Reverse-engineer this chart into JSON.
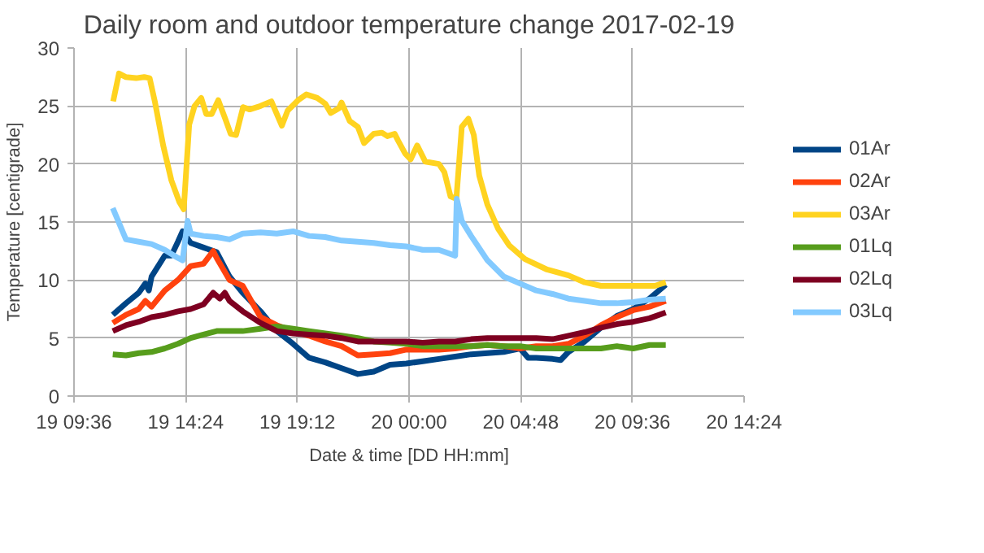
{
  "chart_data": {
    "type": "line",
    "title": "Daily room and outdoor temperature change 2017-02-19",
    "xlabel": "Date & time [DD HH:mm]",
    "ylabel": "Temperature [centigrade]",
    "xlim": [
      "2017-02-19T09:36",
      "2017-02-20T14:24"
    ],
    "xticks": [
      {
        "value": "2017-02-19T09:36",
        "label": "19 09:36"
      },
      {
        "value": "2017-02-19T14:24",
        "label": "19 14:24"
      },
      {
        "value": "2017-02-19T19:12",
        "label": "19 19:12"
      },
      {
        "value": "2017-02-20T00:00",
        "label": "20 00:00"
      },
      {
        "value": "2017-02-20T04:48",
        "label": "20 04:48"
      },
      {
        "value": "2017-02-20T09:36",
        "label": "20 09:36"
      },
      {
        "value": "2017-02-20T14:24",
        "label": "20 14:24"
      }
    ],
    "ylim": [
      0,
      30
    ],
    "yticks": [
      0,
      5,
      10,
      15,
      20,
      25,
      30
    ],
    "grid": true,
    "legend": "right",
    "marker": "none",
    "line_style": "solid",
    "series": [
      {
        "name": "01Ar",
        "color": "#004586",
        "x": [
          "2017-02-19T11:16",
          "2017-02-19T11:50",
          "2017-02-19T12:23",
          "2017-02-19T12:40",
          "2017-02-19T12:49",
          "2017-02-19T12:56",
          "2017-02-19T13:30",
          "2017-02-19T13:47",
          "2017-02-19T14:04",
          "2017-02-19T14:16",
          "2017-02-19T14:20",
          "2017-02-19T14:37",
          "2017-02-19T15:10",
          "2017-02-19T15:44",
          "2017-02-19T16:17",
          "2017-02-19T16:51",
          "2017-02-19T17:37",
          "2017-02-19T18:19",
          "2017-02-19T19:01",
          "2017-02-19T19:42",
          "2017-02-19T20:24",
          "2017-02-19T21:06",
          "2017-02-19T21:48",
          "2017-02-19T22:29",
          "2017-02-19T23:11",
          "2017-02-19T23:53",
          "2017-02-20T00:35",
          "2017-02-20T01:17",
          "2017-02-20T01:59",
          "2017-02-20T02:40",
          "2017-02-20T03:22",
          "2017-02-20T04:04",
          "2017-02-20T04:46",
          "2017-02-20T05:07",
          "2017-02-20T05:28",
          "2017-02-20T06:10",
          "2017-02-20T06:31",
          "2017-02-20T06:51",
          "2017-02-20T07:33",
          "2017-02-20T08:15",
          "2017-02-20T08:56",
          "2017-02-20T09:38",
          "2017-02-20T10:20",
          "2017-02-20T11:02"
        ],
        "values": [
          7.0,
          8.0,
          8.9,
          9.7,
          9.1,
          10.3,
          12.1,
          12.1,
          13.3,
          14.2,
          14.0,
          13.2,
          12.8,
          12.4,
          10.3,
          8.9,
          7.3,
          5.6,
          4.5,
          3.3,
          2.9,
          2.4,
          1.9,
          2.1,
          2.7,
          2.8,
          3.0,
          3.2,
          3.4,
          3.6,
          3.7,
          3.8,
          4.1,
          3.3,
          3.3,
          3.2,
          3.1,
          3.8,
          4.7,
          5.9,
          6.9,
          7.5,
          8.4,
          9.6
        ]
      },
      {
        "name": "02Ar",
        "color": "#ff420e",
        "x": [
          "2017-02-19T11:16",
          "2017-02-19T11:50",
          "2017-02-19T12:23",
          "2017-02-19T12:40",
          "2017-02-19T12:56",
          "2017-02-19T13:30",
          "2017-02-19T14:04",
          "2017-02-19T14:37",
          "2017-02-19T15:10",
          "2017-02-19T15:35",
          "2017-02-19T15:44",
          "2017-02-19T16:17",
          "2017-02-19T16:51",
          "2017-02-19T17:37",
          "2017-02-19T18:19",
          "2017-02-19T19:01",
          "2017-02-19T19:42",
          "2017-02-19T20:24",
          "2017-02-19T21:06",
          "2017-02-19T21:48",
          "2017-02-19T22:29",
          "2017-02-19T23:11",
          "2017-02-19T23:53",
          "2017-02-20T00:35",
          "2017-02-20T01:17",
          "2017-02-20T01:59",
          "2017-02-20T02:40",
          "2017-02-20T03:22",
          "2017-02-20T04:04",
          "2017-02-20T04:46",
          "2017-02-20T05:28",
          "2017-02-20T06:10",
          "2017-02-20T06:51",
          "2017-02-20T07:33",
          "2017-02-20T08:15",
          "2017-02-20T08:56",
          "2017-02-20T09:38",
          "2017-02-20T10:20",
          "2017-02-20T11:02"
        ],
        "values": [
          6.3,
          7.0,
          7.5,
          8.2,
          7.7,
          9.1,
          10.0,
          11.2,
          11.4,
          12.5,
          11.9,
          10.0,
          9.5,
          6.8,
          6.1,
          5.6,
          5.2,
          4.7,
          4.3,
          3.5,
          3.6,
          3.7,
          4.0,
          4.0,
          4.0,
          4.1,
          4.3,
          4.4,
          4.3,
          4.1,
          4.3,
          4.3,
          4.5,
          5.2,
          6.1,
          6.8,
          7.4,
          7.7,
          8.2
        ]
      },
      {
        "name": "03Ar",
        "color": "#ffd320",
        "x": [
          "2017-02-19T11:17",
          "2017-02-19T11:32",
          "2017-02-19T11:49",
          "2017-02-19T12:16",
          "2017-02-19T12:37",
          "2017-02-19T12:51",
          "2017-02-19T13:05",
          "2017-02-19T13:26",
          "2017-02-19T13:47",
          "2017-02-19T14:08",
          "2017-02-19T14:19",
          "2017-02-19T14:33",
          "2017-02-19T14:47",
          "2017-02-19T15:04",
          "2017-02-19T15:17",
          "2017-02-19T15:31",
          "2017-02-19T15:48",
          "2017-02-19T16:06",
          "2017-02-19T16:20",
          "2017-02-19T16:34",
          "2017-02-19T16:52",
          "2017-02-19T17:09",
          "2017-02-19T17:37",
          "2017-02-19T18:05",
          "2017-02-19T18:32",
          "2017-02-19T18:47",
          "2017-02-19T19:14",
          "2017-02-19T19:35",
          "2017-02-19T20:03",
          "2017-02-19T20:24",
          "2017-02-19T20:38",
          "2017-02-19T20:59",
          "2017-02-19T21:06",
          "2017-02-19T21:27",
          "2017-02-19T21:48",
          "2017-02-19T22:04",
          "2017-02-19T22:29",
          "2017-02-19T22:50",
          "2017-02-19T23:04",
          "2017-02-19T23:23",
          "2017-02-19T23:32",
          "2017-02-19T23:50",
          "2017-02-20T00:04",
          "2017-02-20T00:21",
          "2017-02-20T00:42",
          "2017-02-20T01:17",
          "2017-02-20T01:31",
          "2017-02-20T01:47",
          "2017-02-20T02:02",
          "2017-02-20T02:16",
          "2017-02-20T02:33",
          "2017-02-20T02:47",
          "2017-02-20T03:01",
          "2017-02-20T03:22",
          "2017-02-20T03:50",
          "2017-02-20T04:18",
          "2017-02-20T04:59",
          "2017-02-20T05:56",
          "2017-02-20T06:51",
          "2017-02-20T07:33",
          "2017-02-20T08:15",
          "2017-02-20T08:56",
          "2017-02-20T09:52",
          "2017-02-20T10:34",
          "2017-02-20T11:02"
        ],
        "values": [
          25.4,
          27.8,
          27.5,
          27.4,
          27.5,
          27.4,
          25.3,
          21.6,
          18.6,
          16.7,
          16.1,
          23.4,
          25.0,
          25.7,
          24.3,
          24.3,
          25.5,
          23.9,
          22.6,
          22.5,
          24.9,
          24.7,
          25.0,
          25.4,
          23.3,
          24.6,
          25.5,
          26.0,
          25.7,
          25.2,
          24.4,
          24.8,
          25.3,
          23.7,
          23.2,
          21.8,
          22.6,
          22.7,
          22.4,
          22.6,
          22.0,
          20.9,
          20.4,
          21.6,
          20.2,
          20.0,
          19.3,
          17.2,
          17.0,
          23.2,
          23.9,
          22.5,
          19.0,
          16.5,
          14.4,
          13.0,
          11.8,
          10.9,
          10.4,
          9.8,
          9.5,
          9.5,
          9.5,
          9.5,
          9.8
        ]
      },
      {
        "name": "01Lq",
        "color": "#579d1c",
        "x": [
          "2017-02-19T11:16",
          "2017-02-19T11:50",
          "2017-02-19T12:23",
          "2017-02-19T12:56",
          "2017-02-19T13:30",
          "2017-02-19T14:04",
          "2017-02-19T14:37",
          "2017-02-19T15:10",
          "2017-02-19T15:44",
          "2017-02-19T16:17",
          "2017-02-19T16:51",
          "2017-02-19T17:37",
          "2017-02-19T18:19",
          "2017-02-19T19:01",
          "2017-02-19T19:42",
          "2017-02-19T20:24",
          "2017-02-19T21:06",
          "2017-02-19T21:48",
          "2017-02-19T22:29",
          "2017-02-19T23:11",
          "2017-02-19T23:53",
          "2017-02-20T00:35",
          "2017-02-20T01:17",
          "2017-02-20T01:59",
          "2017-02-20T02:40",
          "2017-02-20T03:22",
          "2017-02-20T04:04",
          "2017-02-20T04:46",
          "2017-02-20T05:28",
          "2017-02-20T06:10",
          "2017-02-20T06:51",
          "2017-02-20T07:33",
          "2017-02-20T08:15",
          "2017-02-20T08:56",
          "2017-02-20T09:38",
          "2017-02-20T10:20",
          "2017-02-20T11:02"
        ],
        "values": [
          3.6,
          3.5,
          3.7,
          3.8,
          4.1,
          4.5,
          5.0,
          5.3,
          5.6,
          5.6,
          5.6,
          5.8,
          6.0,
          5.8,
          5.6,
          5.4,
          5.2,
          5.0,
          4.7,
          4.6,
          4.5,
          4.3,
          4.3,
          4.3,
          4.3,
          4.4,
          4.3,
          4.3,
          4.1,
          4.1,
          4.1,
          4.1,
          4.1,
          4.3,
          4.1,
          4.4,
          4.4
        ]
      },
      {
        "name": "02Lq",
        "color": "#7e0021",
        "x": [
          "2017-02-19T11:16",
          "2017-02-19T11:50",
          "2017-02-19T12:23",
          "2017-02-19T12:56",
          "2017-02-19T13:30",
          "2017-02-19T14:04",
          "2017-02-19T14:37",
          "2017-02-19T15:10",
          "2017-02-19T15:35",
          "2017-02-19T15:52",
          "2017-02-19T16:05",
          "2017-02-19T16:17",
          "2017-02-19T16:51",
          "2017-02-19T17:37",
          "2017-02-19T18:19",
          "2017-02-19T19:01",
          "2017-02-19T19:42",
          "2017-02-19T20:24",
          "2017-02-19T21:06",
          "2017-02-19T21:48",
          "2017-02-19T22:29",
          "2017-02-19T23:11",
          "2017-02-19T23:53",
          "2017-02-20T00:35",
          "2017-02-20T01:17",
          "2017-02-20T01:59",
          "2017-02-20T02:40",
          "2017-02-20T03:22",
          "2017-02-20T04:04",
          "2017-02-20T04:46",
          "2017-02-20T05:28",
          "2017-02-20T06:10",
          "2017-02-20T06:51",
          "2017-02-20T07:33",
          "2017-02-20T08:15",
          "2017-02-20T08:56",
          "2017-02-20T09:38",
          "2017-02-20T10:20",
          "2017-02-20T11:02"
        ],
        "values": [
          5.6,
          6.1,
          6.4,
          6.8,
          7.0,
          7.3,
          7.5,
          7.9,
          8.9,
          8.4,
          8.9,
          8.2,
          7.3,
          6.3,
          5.6,
          5.4,
          5.3,
          5.2,
          5.0,
          4.7,
          4.7,
          4.7,
          4.7,
          4.6,
          4.7,
          4.7,
          4.9,
          5.0,
          5.0,
          5.0,
          5.0,
          4.9,
          5.2,
          5.5,
          5.9,
          6.2,
          6.4,
          6.7,
          7.2
        ]
      },
      {
        "name": "03Lq",
        "color": "#83caff",
        "x": [
          "2017-02-19T11:16",
          "2017-02-19T11:50",
          "2017-02-19T12:23",
          "2017-02-19T12:56",
          "2017-02-19T13:30",
          "2017-02-19T14:04",
          "2017-02-19T14:16",
          "2017-02-19T14:29",
          "2017-02-19T14:37",
          "2017-02-19T15:10",
          "2017-02-19T15:44",
          "2017-02-19T16:17",
          "2017-02-19T16:51",
          "2017-02-19T17:37",
          "2017-02-19T18:19",
          "2017-02-19T19:01",
          "2017-02-19T19:42",
          "2017-02-19T20:24",
          "2017-02-19T21:06",
          "2017-02-19T21:48",
          "2017-02-19T22:29",
          "2017-02-19T23:11",
          "2017-02-19T23:53",
          "2017-02-20T00:35",
          "2017-02-20T01:17",
          "2017-02-20T01:59",
          "2017-02-20T02:03",
          "2017-02-20T02:16",
          "2017-02-20T02:40",
          "2017-02-20T03:22",
          "2017-02-20T04:04",
          "2017-02-20T04:46",
          "2017-02-20T05:28",
          "2017-02-20T06:10",
          "2017-02-20T06:51",
          "2017-02-20T07:33",
          "2017-02-20T08:15",
          "2017-02-20T08:56",
          "2017-02-20T09:38",
          "2017-02-20T10:20",
          "2017-02-20T11:02"
        ],
        "values": [
          16.2,
          13.5,
          13.3,
          13.1,
          12.6,
          11.9,
          11.7,
          15.1,
          14.0,
          13.8,
          13.7,
          13.5,
          14.0,
          14.1,
          14.0,
          14.2,
          13.8,
          13.7,
          13.4,
          13.3,
          13.2,
          13.0,
          12.9,
          12.6,
          12.6,
          12.1,
          17.0,
          15.1,
          13.8,
          11.7,
          10.3,
          9.7,
          9.1,
          8.8,
          8.4,
          8.2,
          8.0,
          8.0,
          8.1,
          8.3,
          8.4
        ]
      }
    ]
  }
}
